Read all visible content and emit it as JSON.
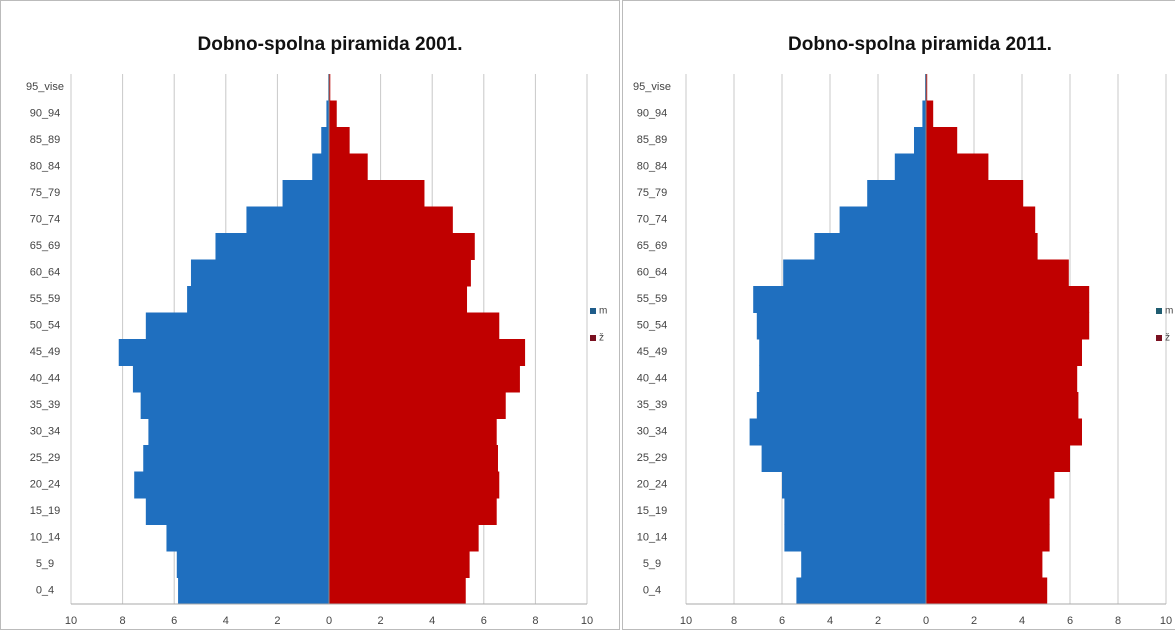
{
  "chart_data": [
    {
      "type": "pyramid",
      "title": "Dobno-spolna piramida 2001.",
      "categories": [
        "0_4",
        "5_9",
        "10_14",
        "15_19",
        "20_24",
        "25_29",
        "30_34",
        "35_39",
        "40_44",
        "45_49",
        "50_54",
        "55_59",
        "60_64",
        "65_69",
        "70_74",
        "75_79",
        "80_84",
        "85_89",
        "90_94",
        "95_vise"
      ],
      "series": [
        {
          "name": "m",
          "color": "#1f6fbf",
          "legend_color": "#1f5c8a",
          "values": [
            -5.85,
            -5.9,
            -6.3,
            -7.1,
            -7.55,
            -7.2,
            -7.0,
            -7.3,
            -7.6,
            -8.15,
            -7.1,
            -5.5,
            -5.35,
            -4.4,
            -3.2,
            -1.8,
            -0.65,
            -0.3,
            -0.1,
            -0.03
          ]
        },
        {
          "name": "ž",
          "color": "#c00000",
          "legend_color": "#7a1020",
          "values": [
            5.3,
            5.45,
            5.8,
            6.5,
            6.6,
            6.55,
            6.5,
            6.85,
            7.4,
            7.6,
            6.6,
            5.35,
            5.5,
            5.65,
            4.8,
            3.7,
            1.5,
            0.8,
            0.3,
            0.05
          ]
        }
      ],
      "xlim": [
        -10,
        10
      ],
      "xticks": [
        {
          "value": -10,
          "label": "10"
        },
        {
          "value": -8,
          "label": "8"
        },
        {
          "value": -6,
          "label": "6"
        },
        {
          "value": -4,
          "label": "4"
        },
        {
          "value": -2,
          "label": "2"
        },
        0,
        2,
        4,
        6,
        8,
        10
      ],
      "grid": true,
      "legend": "right"
    },
    {
      "type": "pyramid",
      "title": "Dobno-spolna piramida 2011.",
      "categories": [
        "0_4",
        "5_9",
        "10_14",
        "15_19",
        "20_24",
        "25_29",
        "30_34",
        "35_39",
        "40_44",
        "45_49",
        "50_54",
        "55_59",
        "60_64",
        "65_69",
        "70_74",
        "75_79",
        "80_84",
        "85_89",
        "90_94",
        "95_vise"
      ],
      "series": [
        {
          "name": "m",
          "color": "#1f6fbf",
          "legend_color": "#1f5c70",
          "values": [
            -5.4,
            -5.2,
            -5.9,
            -5.9,
            -6.0,
            -6.85,
            -7.35,
            -7.05,
            -6.95,
            -6.95,
            -7.05,
            -7.2,
            -5.95,
            -4.65,
            -3.6,
            -2.45,
            -1.3,
            -0.5,
            -0.15,
            -0.04
          ]
        },
        {
          "name": "ž",
          "color": "#c00000",
          "legend_color": "#7a1020",
          "values": [
            5.05,
            4.85,
            5.15,
            5.15,
            5.35,
            6.0,
            6.5,
            6.35,
            6.3,
            6.5,
            6.8,
            6.8,
            5.95,
            4.65,
            4.55,
            4.05,
            2.6,
            1.3,
            0.3,
            0.05
          ]
        }
      ],
      "xlim": [
        -10,
        10
      ],
      "xticks": [
        {
          "value": -10,
          "label": "10"
        },
        {
          "value": -8,
          "label": "8"
        },
        {
          "value": -6,
          "label": "6"
        },
        {
          "value": -4,
          "label": "4"
        },
        {
          "value": -2,
          "label": "2"
        },
        0,
        2,
        4,
        6,
        8,
        10
      ],
      "grid": true,
      "legend": "right"
    }
  ]
}
